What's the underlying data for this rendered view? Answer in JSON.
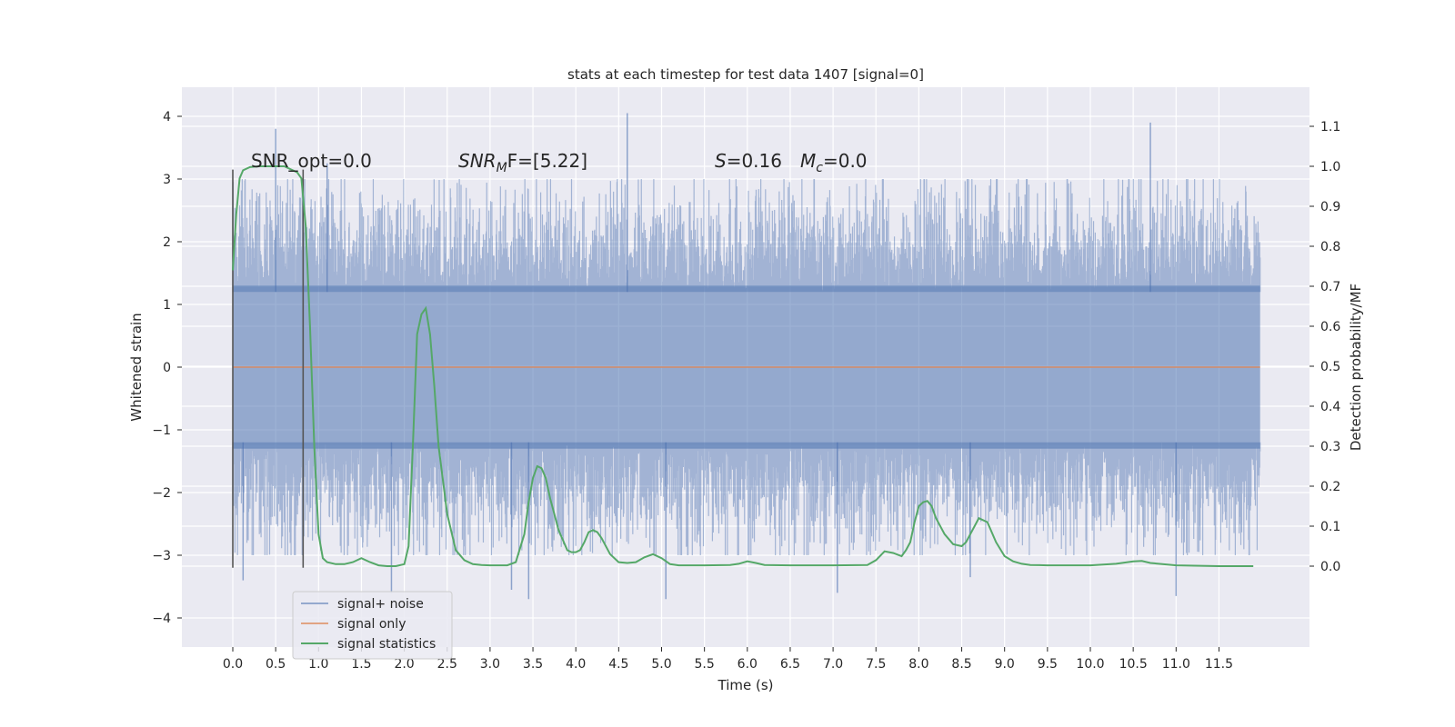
{
  "chart_data": {
    "type": "line",
    "title": "stats at each timestep for test data 1407 [signal=0]",
    "xlabel": "Time (s)",
    "ylabel_left": "Whitened strain",
    "ylabel_right": "Detection probability/MF",
    "xlim": [
      -0.5,
      12.4
    ],
    "ylim_left": [
      -4.45,
      4.45
    ],
    "ylim_right": [
      -0.195,
      1.2
    ],
    "x_ticks": [
      0.0,
      0.5,
      1.0,
      1.5,
      2.0,
      2.5,
      3.0,
      3.5,
      4.0,
      4.5,
      5.0,
      5.5,
      6.0,
      6.5,
      7.0,
      7.5,
      8.0,
      8.5,
      9.0,
      9.5,
      10.0,
      10.5,
      11.0,
      11.5
    ],
    "x_tick_labels": [
      "0.0",
      "0.5",
      "1.0",
      "1.5",
      "2.0",
      "2.5",
      "3.0",
      "3.5",
      "4.0",
      "4.5",
      "5.0",
      "5.5",
      "6.0",
      "6.5",
      "7.0",
      "7.5",
      "8.0",
      "8.5",
      "9.0",
      "9.5",
      "10.0",
      "10.5",
      "11.0",
      "11.5"
    ],
    "y_left_ticks": [
      -4,
      -3,
      -2,
      -1,
      0,
      1,
      2,
      3,
      4
    ],
    "y_left_tick_labels": [
      "−4",
      "−3",
      "−2",
      "−1",
      "0",
      "1",
      "2",
      "3",
      "4"
    ],
    "y_right_ticks": [
      0.0,
      0.1,
      0.2,
      0.3,
      0.4,
      0.5,
      0.6,
      0.7,
      0.8,
      0.9,
      1.0,
      1.1
    ],
    "y_right_tick_labels": [
      "0.0",
      "0.1",
      "0.2",
      "0.3",
      "0.4",
      "0.5",
      "0.6",
      "0.7",
      "0.8",
      "0.9",
      "1.0",
      "1.1"
    ],
    "grid": true,
    "legend_position": "lower-left",
    "annotations": {
      "snr_opt": "SNR_opt=0.0",
      "snr_mf_symbol": "SNR",
      "snr_mf_sub": "M",
      "snr_mf_rest": "F=[5.22]",
      "s_symbol": "S",
      "s_rest": "=0.16",
      "mc_symbol": "M",
      "mc_sub": "c",
      "mc_rest": "=0.0"
    },
    "series": [
      {
        "name": "signal+ noise",
        "color": "#4c72b0",
        "axis": "left",
        "x_range": [
          0.0,
          11.98
        ],
        "sample_count": 2400,
        "band_1sigma": [
          -1.3,
          1.3
        ],
        "typical_extent": [
          -3.0,
          3.0
        ],
        "peaks": [
          {
            "x": 0.5,
            "y": 3.8
          },
          {
            "x": 1.1,
            "y": 3.25
          },
          {
            "x": 1.85,
            "y": -3.6
          },
          {
            "x": 3.45,
            "y": -3.7
          },
          {
            "x": 4.6,
            "y": 4.05
          },
          {
            "x": 5.05,
            "y": -3.7
          },
          {
            "x": 7.05,
            "y": -3.6
          },
          {
            "x": 10.7,
            "y": 3.9
          },
          {
            "x": 11.0,
            "y": -3.65
          },
          {
            "x": 0.12,
            "y": -3.4
          },
          {
            "x": 3.25,
            "y": -3.55
          },
          {
            "x": 8.6,
            "y": -3.35
          }
        ]
      },
      {
        "name": "signal only",
        "color": "#dd8452",
        "axis": "left",
        "x": [
          0.0,
          11.98
        ],
        "y": [
          0.0,
          0.0
        ]
      },
      {
        "name": "signal statistics",
        "color": "#55a868",
        "axis": "right",
        "x": [
          0.0,
          0.04,
          0.08,
          0.12,
          0.2,
          0.3,
          0.4,
          0.5,
          0.6,
          0.7,
          0.75,
          0.8,
          0.85,
          0.9,
          0.95,
          1.0,
          1.05,
          1.1,
          1.2,
          1.3,
          1.4,
          1.5,
          1.6,
          1.7,
          1.8,
          1.9,
          2.0,
          2.05,
          2.1,
          2.15,
          2.2,
          2.25,
          2.3,
          2.35,
          2.4,
          2.5,
          2.6,
          2.7,
          2.8,
          2.9,
          3.0,
          3.1,
          3.2,
          3.3,
          3.4,
          3.45,
          3.5,
          3.55,
          3.6,
          3.65,
          3.7,
          3.8,
          3.9,
          3.95,
          4.0,
          4.05,
          4.1,
          4.15,
          4.2,
          4.25,
          4.3,
          4.4,
          4.5,
          4.6,
          4.7,
          4.8,
          4.9,
          5.0,
          5.1,
          5.2,
          5.5,
          5.8,
          5.9,
          6.0,
          6.1,
          6.2,
          6.5,
          7.0,
          7.4,
          7.5,
          7.6,
          7.7,
          7.8,
          7.85,
          7.9,
          7.95,
          8.0,
          8.05,
          8.1,
          8.15,
          8.2,
          8.3,
          8.4,
          8.5,
          8.55,
          8.6,
          8.65,
          8.7,
          8.8,
          8.9,
          9.0,
          9.1,
          9.2,
          9.3,
          9.5,
          10.0,
          10.3,
          10.5,
          10.6,
          10.7,
          11.0,
          11.5,
          11.9
        ],
        "y": [
          0.74,
          0.88,
          0.97,
          0.99,
          0.998,
          1.0,
          1.0,
          1.0,
          1.0,
          0.99,
          0.985,
          0.97,
          0.85,
          0.6,
          0.3,
          0.08,
          0.02,
          0.01,
          0.005,
          0.005,
          0.01,
          0.02,
          0.01,
          0.002,
          0.0,
          0.0,
          0.005,
          0.05,
          0.3,
          0.58,
          0.63,
          0.645,
          0.58,
          0.45,
          0.3,
          0.13,
          0.04,
          0.015,
          0.005,
          0.003,
          0.002,
          0.002,
          0.002,
          0.01,
          0.08,
          0.16,
          0.22,
          0.25,
          0.245,
          0.22,
          0.17,
          0.09,
          0.04,
          0.035,
          0.035,
          0.04,
          0.06,
          0.085,
          0.09,
          0.085,
          0.07,
          0.03,
          0.01,
          0.008,
          0.01,
          0.022,
          0.03,
          0.02,
          0.005,
          0.002,
          0.002,
          0.003,
          0.006,
          0.012,
          0.008,
          0.003,
          0.002,
          0.002,
          0.003,
          0.015,
          0.037,
          0.033,
          0.025,
          0.04,
          0.06,
          0.11,
          0.15,
          0.16,
          0.163,
          0.15,
          0.12,
          0.08,
          0.055,
          0.05,
          0.06,
          0.08,
          0.1,
          0.12,
          0.11,
          0.06,
          0.025,
          0.012,
          0.006,
          0.003,
          0.002,
          0.002,
          0.006,
          0.012,
          0.013,
          0.008,
          0.002,
          0.0,
          0.0
        ]
      }
    ],
    "markers": [
      {
        "x": 0.0,
        "y0": -3.2,
        "y1": 3.15,
        "axis": "left",
        "color": "#555555"
      },
      {
        "x": 0.82,
        "y0": -3.2,
        "y1": 3.15,
        "axis": "left",
        "color": "#555555"
      }
    ]
  }
}
